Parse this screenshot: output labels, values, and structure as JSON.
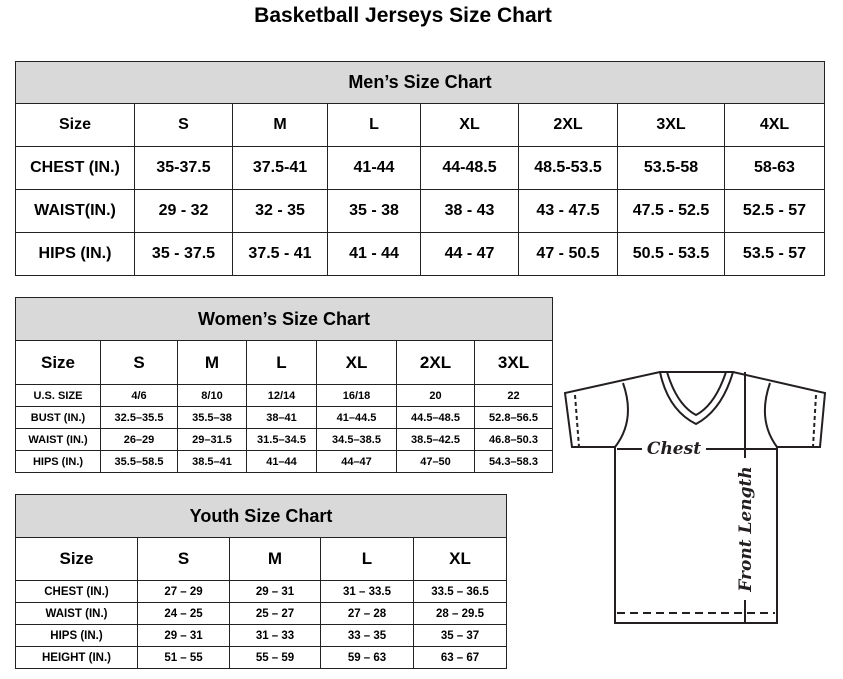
{
  "title": "Basketball Jerseys Size Chart",
  "mens": {
    "heading": "Men’s Size Chart",
    "header": [
      "Size",
      "S",
      "M",
      "L",
      "XL",
      "2XL",
      "3XL",
      "4XL"
    ],
    "rows": [
      [
        "CHEST (IN.)",
        "35-37.5",
        "37.5-41",
        "41-44",
        "44-48.5",
        "48.5-53.5",
        "53.5-58",
        "58-63"
      ],
      [
        "WAIST(IN.)",
        "29 - 32",
        "32 - 35",
        "35 - 38",
        "38 - 43",
        "43 - 47.5",
        "47.5 - 52.5",
        "52.5 - 57"
      ],
      [
        "HIPS (IN.)",
        "35 - 37.5",
        "37.5 - 41",
        "41 - 44",
        "44 - 47",
        "47 - 50.5",
        "50.5 - 53.5",
        "53.5 - 57"
      ]
    ]
  },
  "womens": {
    "heading": "Women’s Size Chart",
    "header": [
      "Size",
      "S",
      "M",
      "L",
      "XL",
      "2XL",
      "3XL"
    ],
    "rows": [
      [
        "U.S. SIZE",
        "4/6",
        "8/10",
        "12/14",
        "16/18",
        "20",
        "22"
      ],
      [
        "BUST (IN.)",
        "32.5–35.5",
        "35.5–38",
        "38–41",
        "41–44.5",
        "44.5–48.5",
        "52.8–56.5"
      ],
      [
        "WAIST (IN.)",
        "26–29",
        "29–31.5",
        "31.5–34.5",
        "34.5–38.5",
        "38.5–42.5",
        "46.8–50.3"
      ],
      [
        "HIPS (IN.)",
        "35.5–58.5",
        "38.5–41",
        "41–44",
        "44–47",
        "47–50",
        "54.3–58.3"
      ]
    ]
  },
  "youth": {
    "heading": "Youth Size Chart",
    "header": [
      "Size",
      "S",
      "M",
      "L",
      "XL"
    ],
    "rows": [
      [
        "CHEST (IN.)",
        "27 – 29",
        "29 – 31",
        "31 – 33.5",
        "33.5 – 36.5"
      ],
      [
        "WAIST (IN.)",
        "24 – 25",
        "25 – 27",
        "27 – 28",
        "28 – 29.5"
      ],
      [
        "HIPS (IN.)",
        "29 – 31",
        "31 – 33",
        "33 – 35",
        "35 – 37"
      ],
      [
        "HEIGHT (IN.)",
        "51 – 55",
        "55 – 59",
        "59 – 63",
        "63 – 67"
      ]
    ]
  },
  "diagram": {
    "chest_label": "Chest",
    "length_label": "Front Length"
  },
  "colors": {
    "header_bg": "#d9d9d9",
    "line": "#231f20"
  }
}
